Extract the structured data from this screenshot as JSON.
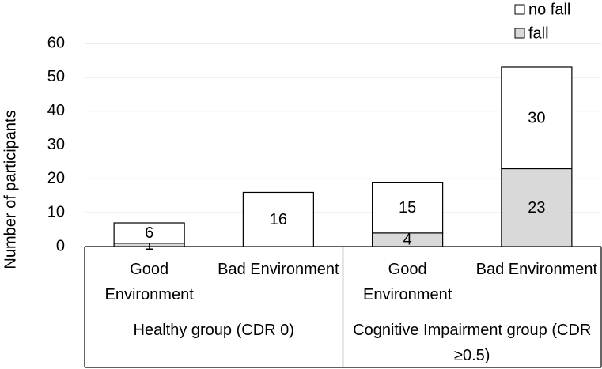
{
  "chart_data": {
    "type": "stacked_bar",
    "y_label": "Number of participants",
    "categories": [
      "Good Environment",
      "Bad Environment",
      "Good Environment",
      "Bad Environment"
    ],
    "groups": [
      "Healthy group (CDR 0)",
      "Cognitive Impairment group (CDR ≥0.5)"
    ],
    "series": [
      {
        "name": "fall",
        "color": "#d9d9d9",
        "values": [
          1,
          0,
          4,
          23
        ]
      },
      {
        "name": "no fall",
        "color": "#ffffff",
        "values": [
          6,
          16,
          15,
          30
        ]
      }
    ],
    "ylim": [
      0,
      60
    ],
    "yticks": [
      0,
      10,
      20,
      30,
      40,
      50,
      60
    ],
    "grid": true,
    "legend": "top-right"
  }
}
